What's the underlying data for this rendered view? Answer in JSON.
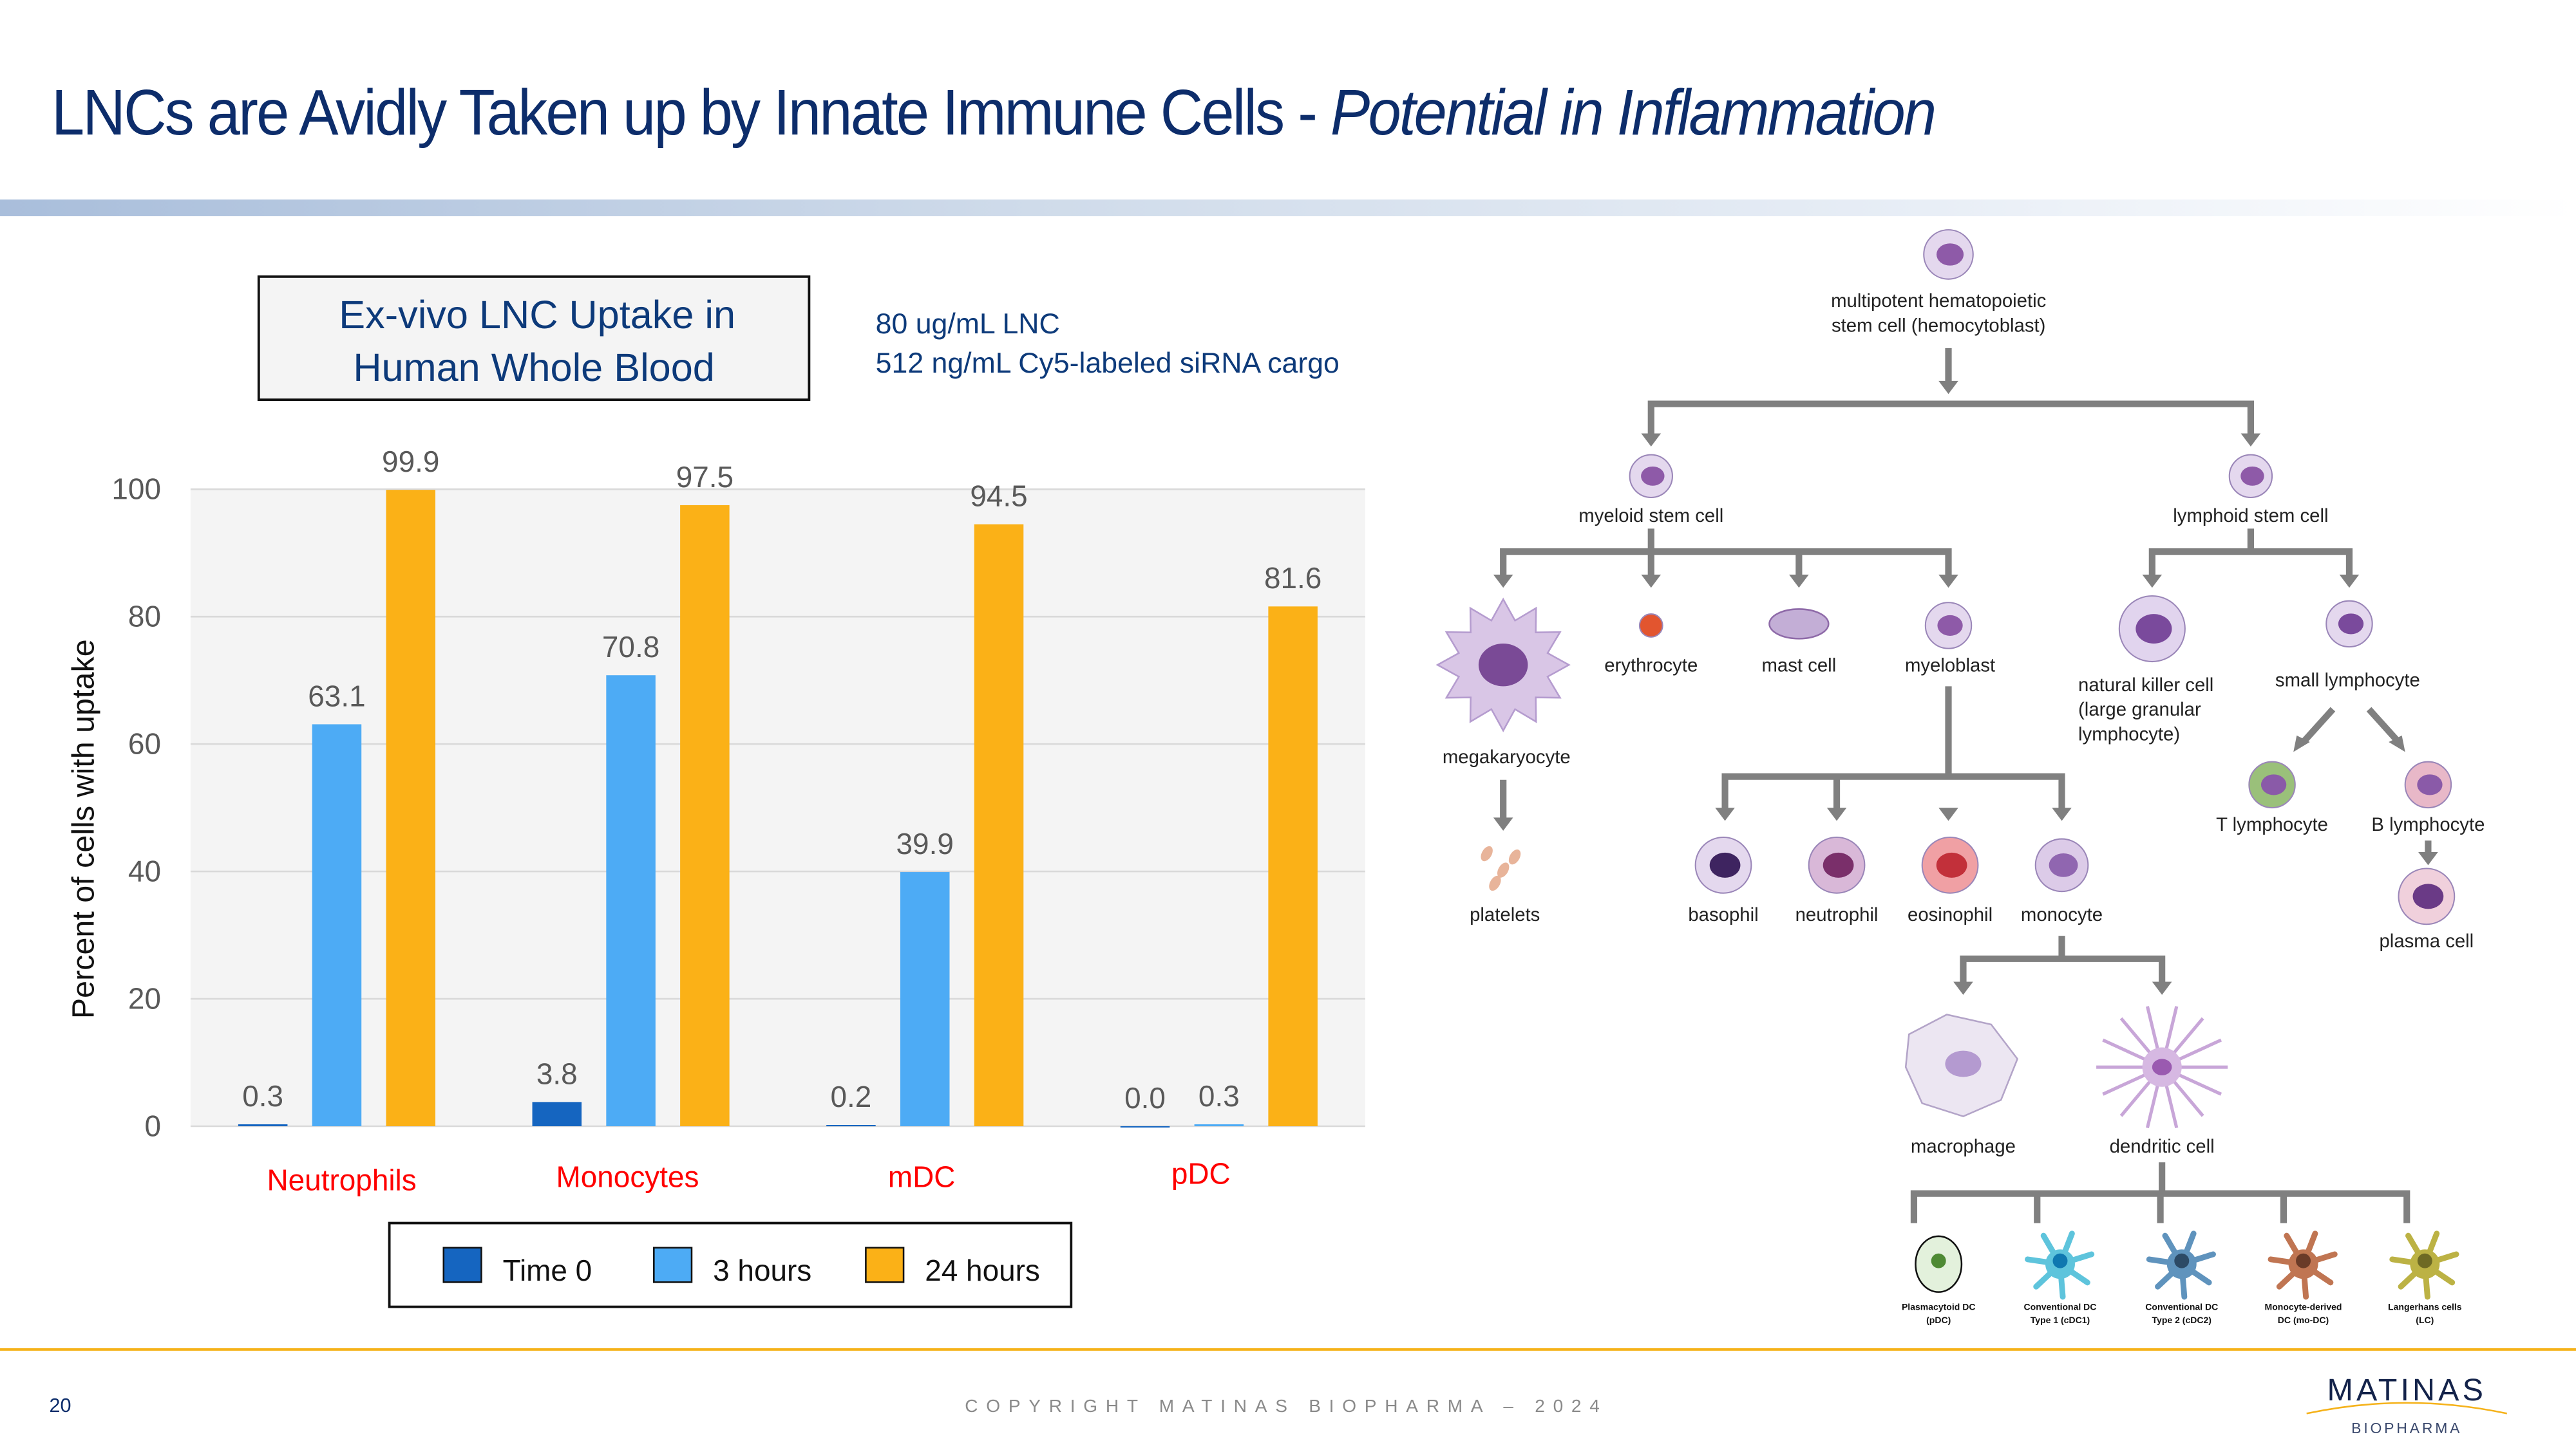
{
  "header": {
    "title_main": "LNCs are Avidly Taken up by Innate Immune Cells",
    "title_sep": " - ",
    "title_italic": "Potential in Inflammation"
  },
  "chart_box": {
    "line1": "Ex-vivo LNC Uptake in",
    "line2": "Human Whole Blood"
  },
  "notes": [
    "80 ug/mL LNC",
    "512 ng/mL Cy5-labeled siRNA cargo"
  ],
  "chart_data": {
    "type": "bar",
    "title": "Ex-vivo LNC Uptake in Human Whole Blood",
    "ylabel": "Percent of cells with uptake",
    "xlabel": "",
    "ylim": [
      0,
      100
    ],
    "yticks": [
      "0",
      "20",
      "40",
      "60",
      "80",
      "100"
    ],
    "grid": true,
    "legend_placement": "bottom",
    "categories": [
      "Neutrophils",
      "Monocytes",
      "mDC",
      "pDC"
    ],
    "category_color": "#ff0000",
    "series": [
      {
        "name": "Time 0",
        "color": "#1565c0",
        "values": [
          0.3,
          3.8,
          0.2,
          0.0
        ],
        "labels": [
          "0.3",
          "3.8",
          "0.2",
          "0.0"
        ]
      },
      {
        "name": "3 hours",
        "color": "#4dabf5",
        "values": [
          63.1,
          70.8,
          39.9,
          0.3
        ],
        "labels": [
          "63.1",
          "70.8",
          "39.9",
          "0.3"
        ]
      },
      {
        "name": "24 hours",
        "color": "#fbb117",
        "values": [
          99.9,
          97.5,
          94.5,
          81.6
        ],
        "labels": [
          "99.9",
          "97.5",
          "94.5",
          "81.6"
        ]
      }
    ]
  },
  "diagram": {
    "stem": [
      "multipotent hematopoietic",
      "stem cell (hemocytoblast)"
    ],
    "myeloid": "myeloid stem cell",
    "lymphoid": "lymphoid stem cell",
    "megakaryocyte": "megakaryocyte",
    "erythrocyte": "erythrocyte",
    "mast": "mast cell",
    "myeloblast": "myeloblast",
    "platelets": "platelets",
    "nk": [
      "natural killer cell",
      "(large granular",
      "lymphocyte)"
    ],
    "small_lymph": "small lymphocyte",
    "t": "T lymphocyte",
    "b": "B lymphocyte",
    "plasma": "plasma cell",
    "basophil": "basophil",
    "neutrophil": "neutrophil",
    "eosinophil": "eosinophil",
    "monocyte": "monocyte",
    "macrophage": "macrophage",
    "dendritic": "dendritic cell",
    "dc_types": [
      {
        "l1": "Plasmacytoid DC",
        "l2": "(pDC)",
        "color": "#e3f1dc",
        "nucleus": "#4e8a34"
      },
      {
        "l1": "Conventional DC",
        "l2": "Type 1 (cDC1)",
        "color": "#5ec4dc",
        "nucleus": "#0f78b0"
      },
      {
        "l1": "Conventional DC",
        "l2": "Type 2 (cDC2)",
        "color": "#5f93bd",
        "nucleus": "#2c4a66"
      },
      {
        "l1": "Monocyte-derived",
        "l2": "DC (mo-DC)",
        "color": "#c07552",
        "nucleus": "#6a3b28"
      },
      {
        "l1": "Langerhans cells",
        "l2": "(LC)",
        "color": "#bcb244",
        "nucleus": "#6e6a24"
      }
    ]
  },
  "footer": {
    "page": "20",
    "copyright": "COPYRIGHT MATINAS BIOPHARMA – 2024",
    "logo_main": "MATINAS",
    "logo_sub": "BIOPHARMA",
    "accent": "#f5b21a"
  }
}
